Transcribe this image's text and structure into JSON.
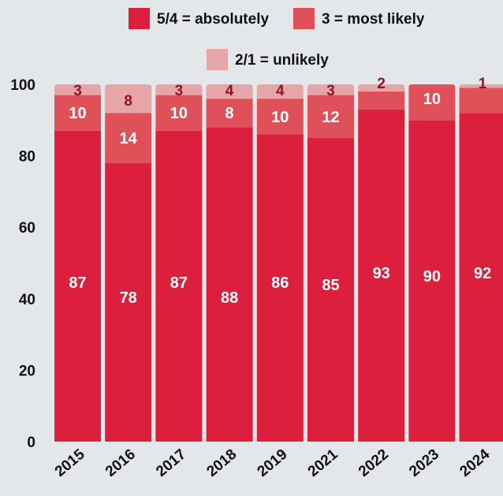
{
  "chart_data": {
    "type": "bar",
    "stacked": true,
    "categories": [
      "2015",
      "2016",
      "2017",
      "2018",
      "2019",
      "2021",
      "2022",
      "2023",
      "2024"
    ],
    "series": [
      {
        "name": "5/4 = absolutely",
        "color": "#dc1f3c",
        "values": [
          87,
          78,
          87,
          88,
          86,
          85,
          93,
          90,
          92
        ]
      },
      {
        "name": "3 = most likely",
        "color": "#e05058",
        "values": [
          10,
          14,
          10,
          8,
          10,
          12,
          5,
          10,
          7
        ]
      },
      {
        "name": "2/1 = unlikely",
        "color": "#e6a5a9",
        "values": [
          3,
          8,
          3,
          4,
          4,
          3,
          2,
          0,
          1
        ]
      }
    ],
    "data_labels": [
      [
        "87",
        "78",
        "87",
        "88",
        "86",
        "85",
        "93",
        "90",
        "92"
      ],
      [
        "10",
        "14",
        "10",
        "8",
        "10",
        "12",
        "",
        "10",
        ""
      ],
      [
        "3",
        "8",
        "3",
        "4",
        "4",
        "3",
        "2",
        "",
        "1"
      ]
    ],
    "yticks": [
      "0",
      "20",
      "40",
      "60",
      "80",
      "100"
    ],
    "ylim": [
      0,
      100
    ],
    "grid": false,
    "legend_position": "top",
    "title": "",
    "xlabel": "",
    "ylabel": ""
  }
}
